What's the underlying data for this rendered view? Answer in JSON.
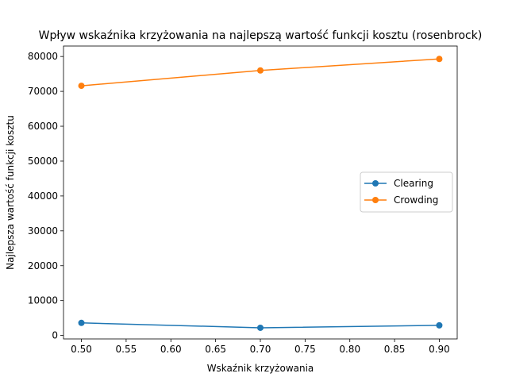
{
  "chart_data": {
    "type": "line",
    "title": "Wpływ wskaźnika krzyżowania na najlepszą wartość funkcji kosztu (rosenbrock)",
    "xlabel": "Wskaźnik krzyżowania",
    "ylabel": "Najlepsza wartość funkcji kosztu",
    "x": [
      0.5,
      0.7,
      0.9
    ],
    "xlim": [
      0.48,
      0.92
    ],
    "ylim": [
      -1000,
      83000
    ],
    "xticks": [
      0.5,
      0.55,
      0.6,
      0.65,
      0.7,
      0.75,
      0.8,
      0.85,
      0.9
    ],
    "xtick_labels": [
      "0.50",
      "0.55",
      "0.60",
      "0.65",
      "0.70",
      "0.75",
      "0.80",
      "0.85",
      "0.90"
    ],
    "yticks": [
      0,
      10000,
      20000,
      30000,
      40000,
      50000,
      60000,
      70000,
      80000
    ],
    "ytick_labels": [
      "0",
      "10000",
      "20000",
      "30000",
      "40000",
      "50000",
      "60000",
      "70000",
      "80000"
    ],
    "grid": false,
    "legend_position": "center-right",
    "series": [
      {
        "name": "Clearing",
        "color": "#1f77b4",
        "values": [
          3600,
          2200,
          2900
        ]
      },
      {
        "name": "Crowding",
        "color": "#ff7f0e",
        "values": [
          71600,
          76000,
          79300
        ]
      }
    ]
  }
}
